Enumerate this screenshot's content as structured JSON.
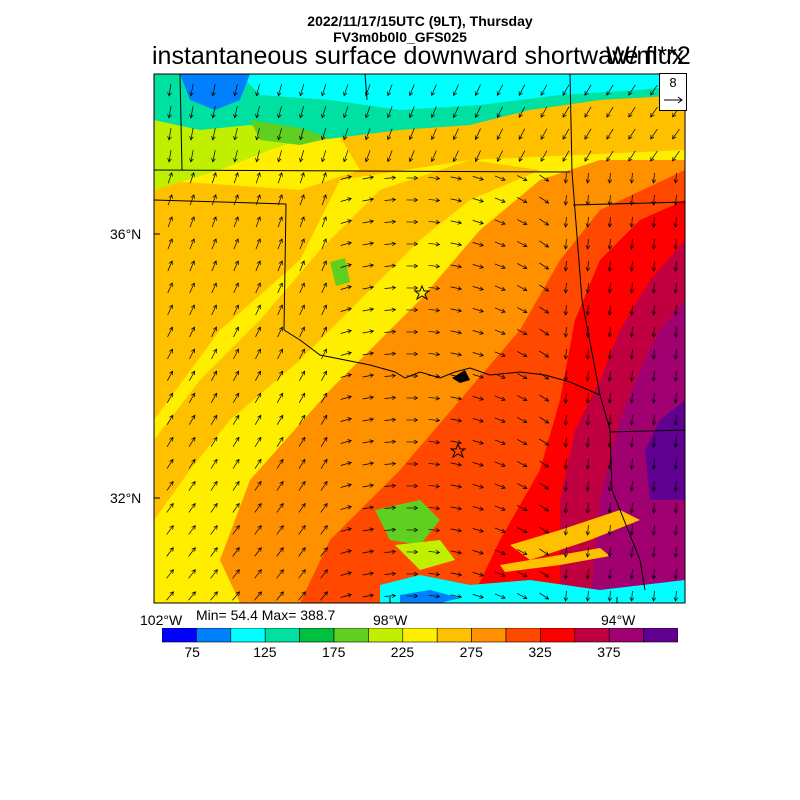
{
  "header": {
    "line1": "2022/11/17/15UTC (9LT), Thursday",
    "line2": "FV3m0b0l0_GFS025",
    "title": "instantaneous surface downward shortwave flux",
    "units": "W/m**2"
  },
  "stats": {
    "text": "Min= 54.4 Max= 388.7",
    "min": 54.4,
    "max": 388.7
  },
  "axes": {
    "lat_labels": [
      "36°N",
      "32°N"
    ],
    "lon_labels": [
      "102°W",
      "98°W",
      "94°W"
    ]
  },
  "vector_reference": {
    "value": "8"
  },
  "colorbar": {
    "colors": [
      "#0000ff",
      "#0080ff",
      "#00ffff",
      "#00e0a0",
      "#00c040",
      "#60d020",
      "#c0f000",
      "#ffee00",
      "#ffc000",
      "#ff9000",
      "#ff4800",
      "#ff0000",
      "#c00040",
      "#a00070",
      "#600090"
    ],
    "labels": [
      "75",
      "125",
      "175",
      "225",
      "275",
      "325",
      "375"
    ]
  },
  "map": {
    "field": "surface downward shortwave flux",
    "markers": [
      "star",
      "star"
    ],
    "colors": {
      "high_east": "#a00070",
      "very_high": "#600090",
      "low_north": "#00e0a0"
    }
  }
}
